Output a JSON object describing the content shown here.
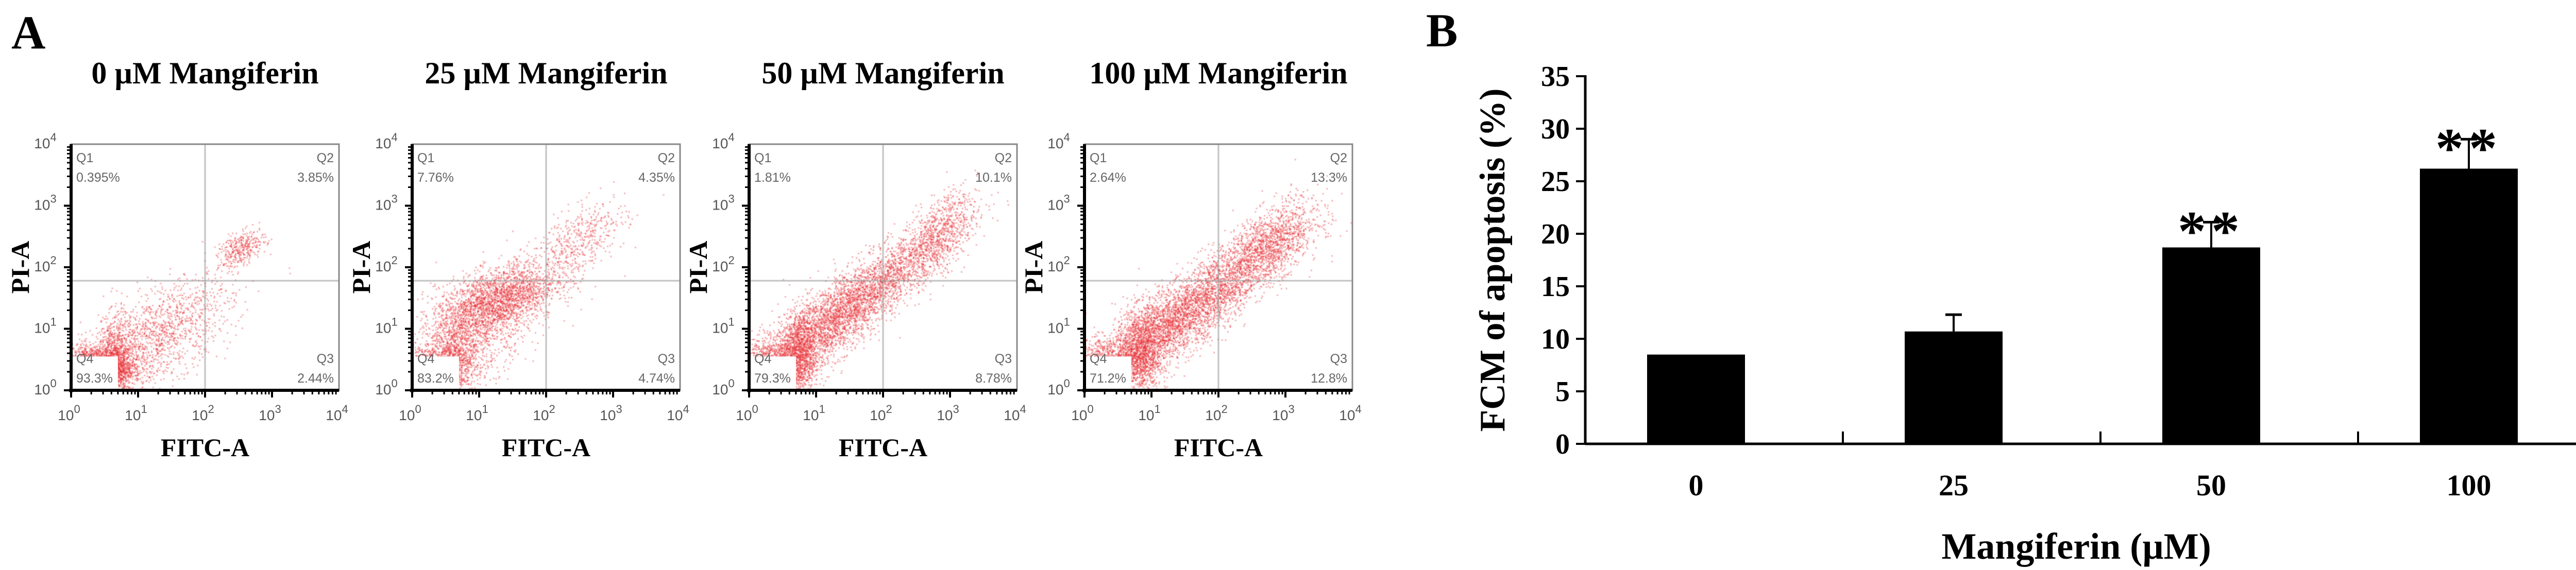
{
  "panel_a": {
    "letter": "A",
    "x_axis_label": "FITC-A",
    "y_axis_label": "PI-A",
    "tick_base": "10",
    "tick_exponents": [
      "0",
      "1",
      "2",
      "3",
      "4"
    ],
    "dot_color": "#e8353a"
  },
  "panel_b": {
    "letter": "B"
  },
  "chart_data": [
    {
      "type": "scatter",
      "title": "0 µM Mangiferin",
      "xlabel": "FITC-A",
      "ylabel": "PI-A",
      "xscale": "log",
      "yscale": "log",
      "xlim": [
        1,
        10000
      ],
      "ylim": [
        1,
        10000
      ],
      "quadrants": {
        "Q1": {
          "label": "Q1",
          "value": "0.395%"
        },
        "Q2": {
          "label": "Q2",
          "value": "3.85%"
        },
        "Q3": {
          "label": "Q3",
          "value": "2.44%"
        },
        "Q4": {
          "label": "Q4",
          "value": "93.3%"
        }
      }
    },
    {
      "type": "scatter",
      "title": "25 µM Mangiferin",
      "xlabel": "FITC-A",
      "ylabel": "PI-A",
      "xscale": "log",
      "yscale": "log",
      "xlim": [
        1,
        10000
      ],
      "ylim": [
        1,
        10000
      ],
      "quadrants": {
        "Q1": {
          "label": "Q1",
          "value": "7.76%"
        },
        "Q2": {
          "label": "Q2",
          "value": "4.35%"
        },
        "Q3": {
          "label": "Q3",
          "value": "4.74%"
        },
        "Q4": {
          "label": "Q4",
          "value": "83.2%"
        }
      }
    },
    {
      "type": "scatter",
      "title": "50 µM Mangiferin",
      "xlabel": "FITC-A",
      "ylabel": "PI-A",
      "xscale": "log",
      "yscale": "log",
      "xlim": [
        1,
        10000
      ],
      "ylim": [
        1,
        10000
      ],
      "quadrants": {
        "Q1": {
          "label": "Q1",
          "value": "1.81%"
        },
        "Q2": {
          "label": "Q2",
          "value": "10.1%"
        },
        "Q3": {
          "label": "Q3",
          "value": "8.78%"
        },
        "Q4": {
          "label": "Q4",
          "value": "79.3%"
        }
      }
    },
    {
      "type": "scatter",
      "title": "100 µM Mangiferin",
      "xlabel": "FITC-A",
      "ylabel": "PI-A",
      "xscale": "log",
      "yscale": "log",
      "xlim": [
        1,
        10000
      ],
      "ylim": [
        1,
        10000
      ],
      "quadrants": {
        "Q1": {
          "label": "Q1",
          "value": "2.64%"
        },
        "Q2": {
          "label": "Q2",
          "value": "13.3%"
        },
        "Q3": {
          "label": "Q3",
          "value": "12.8%"
        },
        "Q4": {
          "label": "Q4",
          "value": "71.2%"
        }
      }
    },
    {
      "type": "bar",
      "categories": [
        "0",
        "25",
        "50",
        "100"
      ],
      "values": [
        8.5,
        10.7,
        18.7,
        26.2
      ],
      "errors": [
        0,
        1.6,
        2.4,
        2.8
      ],
      "significance": [
        "",
        "",
        "**",
        "**"
      ],
      "title": "",
      "xlabel": "Mangiferin (µM)",
      "ylabel": "FCM of apoptosis (%)",
      "ylim": [
        0,
        35
      ],
      "yticks": [
        "0",
        "5",
        "10",
        "15",
        "20",
        "25",
        "30",
        "35"
      ],
      "bar_color": "#000000"
    }
  ]
}
